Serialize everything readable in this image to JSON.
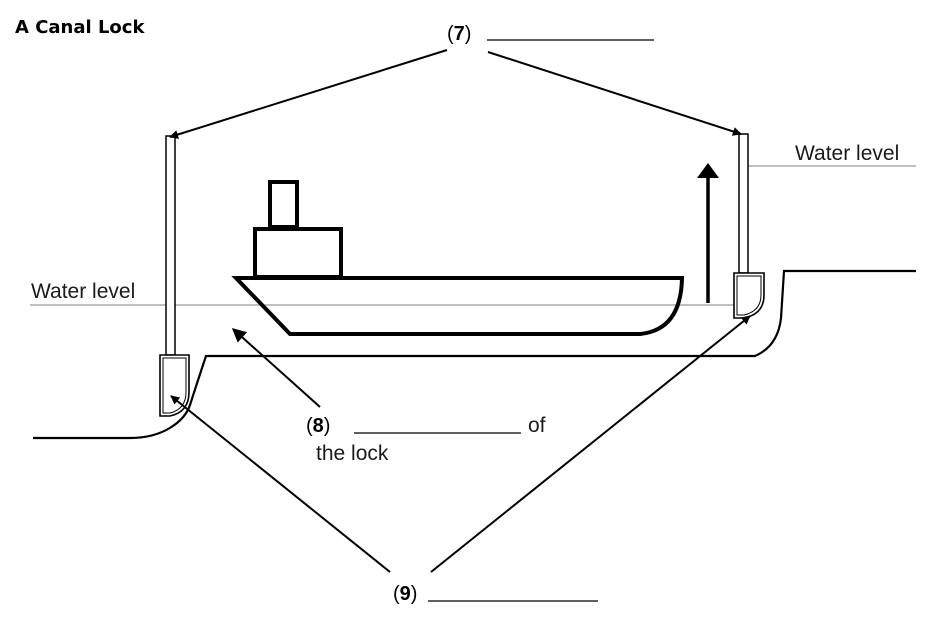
{
  "title": "A Canal Lock",
  "labels": {
    "water_level_right": "Water level",
    "water_level_left": "Water level",
    "q7_number": "7",
    "q8_number": "8",
    "q8_suffix": "of",
    "q8_line2": "the lock",
    "q9_number": "9"
  },
  "colors": {
    "ink": "#000000",
    "water_line": "#999999"
  },
  "icons": {
    "rise_arrow": "up-arrow-icon"
  }
}
